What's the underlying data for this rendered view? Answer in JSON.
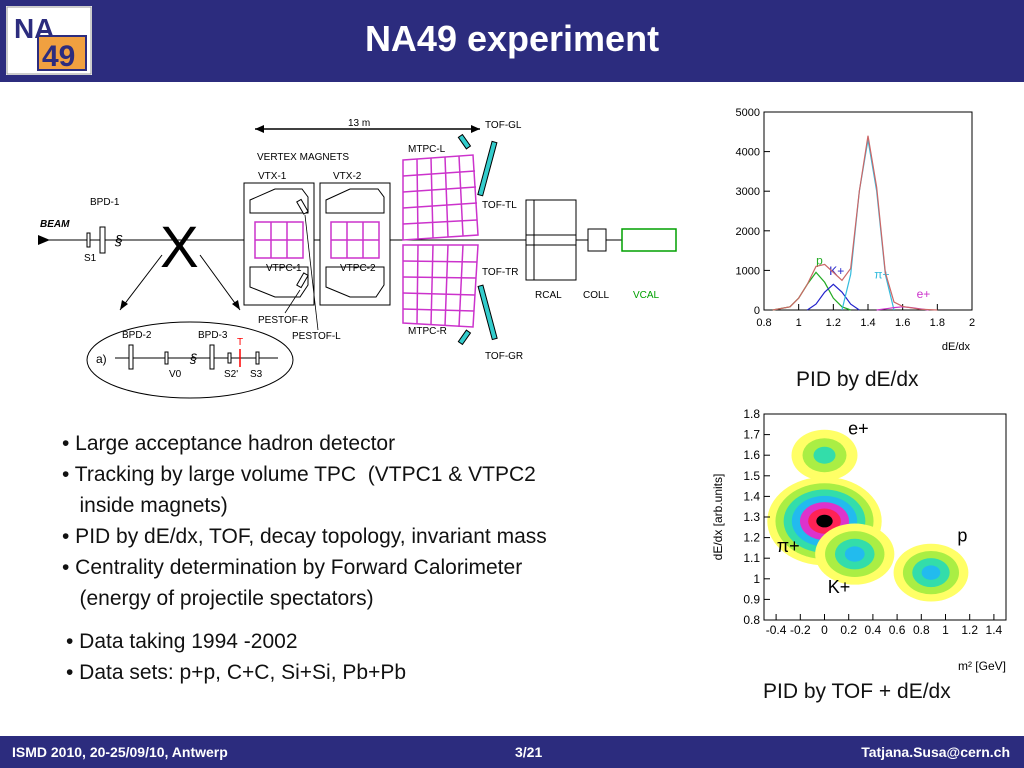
{
  "header": {
    "title": "NA49 experiment",
    "logo_text_top": "NA",
    "logo_text_bottom": "49"
  },
  "detector": {
    "length_label": "13 m",
    "vertex_magnets": "VERTEX MAGNETS",
    "vtx1": "VTX-1",
    "vtx2": "VTX-2",
    "beam": "BEAM",
    "bpd1": "BPD-1",
    "s1": "S1",
    "target_x": "X",
    "vtpc1": "VTPC-1",
    "vtpc2": "VTPC-2",
    "pestof_r": "PESTOF-R",
    "pestof_l": "PESTOF-L",
    "mtpc_l": "MTPC-L",
    "mtpc_r": "MTPC-R",
    "tof_gl": "TOF-GL",
    "tof_tl": "TOF-TL",
    "tof_tr": "TOF-TR",
    "tof_gr": "TOF-GR",
    "rcal": "RCAL",
    "coll": "COLL",
    "vcal": "VCAL",
    "inset_a": "a)",
    "bpd2": "BPD-2",
    "bpd3": "BPD-3",
    "v0": "V0",
    "s2": "S2'",
    "s3": "S3",
    "t": "T",
    "vcal_color": "#00a000",
    "tof_color": "#33cccc",
    "tpc_color": "#cc33cc",
    "target_color": "#ff0000"
  },
  "chart_data": [
    {
      "type": "line",
      "title": "",
      "xlabel": "dE/dx",
      "ylabel": "",
      "xlim": [
        0.8,
        2.0
      ],
      "ylim": [
        0,
        5000
      ],
      "x_ticks": [
        "0.8",
        "1",
        "1.2",
        "1.4",
        "1.6",
        "1.8",
        "2"
      ],
      "y_ticks": [
        "0",
        "1000",
        "2000",
        "3000",
        "4000",
        "5000"
      ],
      "series": [
        {
          "name": "p",
          "color": "#22aa22",
          "x": [
            0.85,
            0.95,
            1.0,
            1.05,
            1.1,
            1.15,
            1.2,
            1.25,
            1.3
          ],
          "values": [
            0,
            80,
            300,
            650,
            950,
            700,
            300,
            80,
            0
          ]
        },
        {
          "name": "K+",
          "color": "#2222cc",
          "x": [
            1.05,
            1.1,
            1.15,
            1.2,
            1.25,
            1.3,
            1.35
          ],
          "values": [
            0,
            150,
            450,
            650,
            450,
            150,
            0
          ]
        },
        {
          "name": "π+",
          "color": "#33bbdd",
          "x": [
            1.25,
            1.3,
            1.35,
            1.4,
            1.45,
            1.5,
            1.55
          ],
          "values": [
            0,
            900,
            3000,
            4300,
            3000,
            900,
            0
          ]
        },
        {
          "name": "e+",
          "color": "#cc33cc",
          "x": [
            1.45,
            1.5,
            1.55,
            1.6,
            1.65,
            1.7,
            1.75
          ],
          "values": [
            0,
            30,
            60,
            80,
            60,
            30,
            0
          ]
        },
        {
          "name": "",
          "color": "#cc6666",
          "x": [
            0.85,
            0.95,
            1.0,
            1.05,
            1.1,
            1.15,
            1.2,
            1.25,
            1.3,
            1.35,
            1.4,
            1.45,
            1.5,
            1.55,
            1.6,
            1.7,
            1.8
          ],
          "values": [
            0,
            80,
            300,
            650,
            1100,
            1150,
            950,
            750,
            1050,
            3000,
            4400,
            3100,
            950,
            200,
            90,
            20,
            0
          ]
        }
      ],
      "caption": "PID by dE/dx"
    },
    {
      "type": "heatmap",
      "title": "",
      "xlabel": "m² [GeV]",
      "ylabel": "dE/dx [arb.units]",
      "xlim": [
        -0.5,
        1.5
      ],
      "ylim": [
        0.8,
        1.8
      ],
      "x_ticks": [
        "-0.4",
        "-0.2",
        "0",
        "0.2",
        "0.4",
        "0.6",
        "0.8",
        "1",
        "1.2",
        "1.4"
      ],
      "y_ticks": [
        "0.8",
        "0.9",
        "1",
        "1.1",
        "1.2",
        "1.3",
        "1.4",
        "1.5",
        "1.6",
        "1.7",
        "1.8"
      ],
      "clusters": [
        {
          "name": "π+",
          "x": 0.0,
          "y": 1.28,
          "peak": 1.0
        },
        {
          "name": "K+",
          "x": 0.25,
          "y": 1.12,
          "peak": 0.6
        },
        {
          "name": "p",
          "x": 0.88,
          "y": 1.03,
          "peak": 0.55
        },
        {
          "name": "e+",
          "x": 0.0,
          "y": 1.6,
          "peak": 0.45
        }
      ],
      "caption": "PID by TOF + dE/dx"
    }
  ],
  "bullets1": [
    "• Large acceptance hadron detector",
    "• Tracking by large volume TPC  (VTPC1 & VTPC2",
    "   inside magnets)",
    "• PID by dE/dx, TOF, decay topology, invariant mass",
    "• Centrality determination by Forward Calorimeter",
    "   (energy of projectile spectators)"
  ],
  "bullets2": [
    "• Data taking 1994 -2002",
    "• Data sets: p+p, C+C, Si+Si, Pb+Pb"
  ],
  "footer": {
    "left": "ISMD 2010, 20-25/09/10,  Antwerp",
    "center": "3/21",
    "right": "Tatjana.Susa@cern.ch"
  }
}
